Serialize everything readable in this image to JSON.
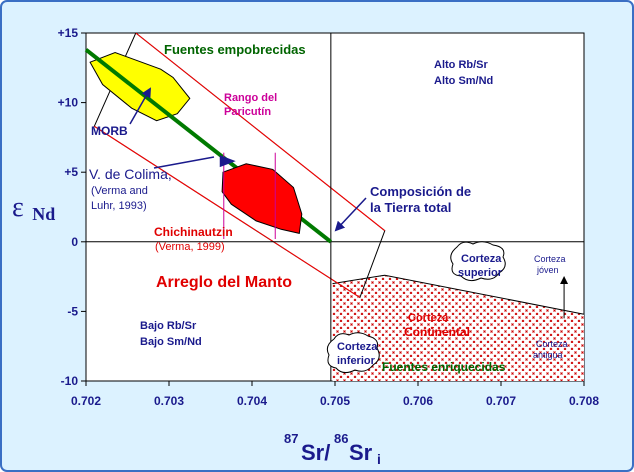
{
  "chart_data": {
    "type": "scatter",
    "x_axis": {
      "label_main": "Sr/",
      "label_sup1": "87",
      "label_sup2": "86",
      "label_sr": "Sr",
      "label_sub": "i",
      "range": [
        0.702,
        0.708
      ],
      "ticks": [
        0.702,
        0.703,
        0.704,
        0.705,
        0.706,
        0.707,
        0.708
      ],
      "tick_labels": [
        "0.702",
        "0.703",
        "0.704",
        "0.705",
        "0.706",
        "0.707",
        "0.708"
      ]
    },
    "y_axis": {
      "label_main": "ε",
      "label_sub": "Nd",
      "range": [
        -10,
        15
      ],
      "ticks": [
        15,
        10,
        5,
        0,
        -5,
        -10
      ],
      "tick_labels": [
        "+15",
        "+10",
        "+5",
        "0",
        "-5",
        "-10"
      ]
    },
    "reference_lines": {
      "bulk_earth_sr": 0.70495,
      "chur_nd": 0
    },
    "mantle_array": {
      "line": [
        [
          0.702,
          13.8
        ],
        [
          0.70495,
          0
        ]
      ],
      "upper_bound": [
        [
          0.7026,
          15
        ],
        [
          0.7056,
          0.8
        ]
      ],
      "lower_bound": [
        [
          0.7021,
          8.3
        ],
        [
          0.7053,
          -4
        ]
      ]
    },
    "morb_field": [
      [
        0.70205,
        12.9
      ],
      [
        0.70235,
        13.6
      ],
      [
        0.7029,
        12.4
      ],
      [
        0.70305,
        11.8
      ],
      [
        0.70325,
        10.3
      ],
      [
        0.7031,
        9.2
      ],
      [
        0.70285,
        8.7
      ],
      [
        0.70255,
        9.6
      ],
      [
        0.7022,
        11.3
      ]
    ],
    "chichinautzin_field": [
      [
        0.70365,
        5.0
      ],
      [
        0.70393,
        5.6
      ],
      [
        0.70425,
        5.2
      ],
      [
        0.7045,
        3.9
      ],
      [
        0.7046,
        2.0
      ],
      [
        0.70457,
        0.6
      ],
      [
        0.70435,
        0.9
      ],
      [
        0.70405,
        1.5
      ],
      [
        0.70375,
        2.7
      ],
      [
        0.70364,
        3.6
      ]
    ],
    "paricutin_range": {
      "x": [
        0.70366,
        0.70428
      ],
      "y_top": 6.4,
      "y_bottom": 0.2
    },
    "colima_point": {
      "x": 0.70378,
      "y": 5.8
    },
    "crust_boundary": [
      [
        0.70497,
        -3
      ],
      [
        0.7056,
        -2.4
      ],
      [
        0.708,
        -5.2
      ]
    ],
    "young_crust_arrow": {
      "x": 0.70776,
      "y_from": -5.5,
      "y_to": -2.6
    },
    "annotations": {
      "depleted": "Fuentes empobrecidas",
      "high1": "Alto Rb/Sr",
      "high2": "Alto Sm/Nd",
      "rango1": "Rango del",
      "rango2": "Paricutín",
      "morb": "MORB",
      "colima1": "V. de Colima,",
      "colima2": "(Verma and",
      "colima3": "Luhr, 1993)",
      "bulk1": "Composición de",
      "bulk2": "la Tierra total",
      "chich1": "Chichinautzin",
      "chich2": "(Verma, 1999)",
      "mantle": "Arreglo del Manto",
      "low1": "Bajo Rb/Sr",
      "low2": "Bajo Sm/Nd",
      "upper_crust1": "Corteza",
      "upper_crust2": "superior",
      "young1": "Corteza",
      "young2": "jóven",
      "old1": "Corteza",
      "old2": "antigua",
      "continental1": "Corteza",
      "continental2": "Continental",
      "lower_crust1": "Corteza",
      "lower_crust2": "inferior",
      "enriched": "Fuentes enriquecidas"
    }
  },
  "colors": {
    "frame_bg": "#dcf2ff",
    "frame_border": "#3a6fc4",
    "morb_fill": "#ffff00",
    "chich_fill": "#ff0000",
    "mantle_line": "#007a00",
    "bound_line": "#ff0000",
    "crust_hatch": "#cc0000",
    "blue_text": "#1a1a8c",
    "green_text": "#006400",
    "magenta_text": "#cc0099",
    "red_text": "#e00000"
  }
}
